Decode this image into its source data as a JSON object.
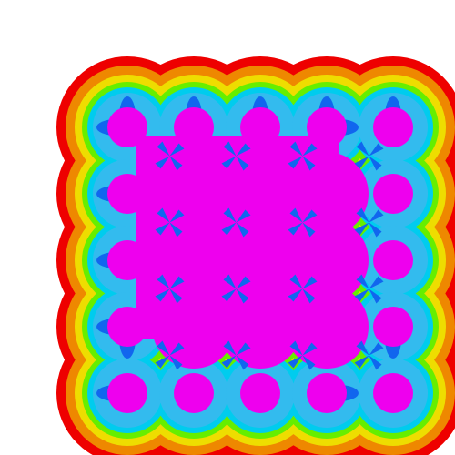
{
  "image": {
    "description_free": true,
    "grid_size": 4,
    "palette": {
      "background": "#ffffff",
      "level_1": "#ee0000",
      "level_2": "#ee8800",
      "level_3": "#eedd00",
      "level_4": "#66ee00",
      "level_5": "#00ccee",
      "level_6": "#33bbee",
      "level_7": "#1166ee",
      "core": "#ee00ee"
    }
  }
}
